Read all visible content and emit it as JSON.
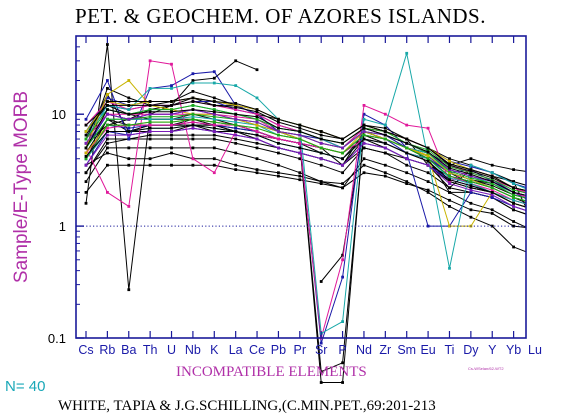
{
  "title": "PET. & GEOCHEM. OF AZORES ISLANDS.",
  "ylabel": "Sample/E-Type MORB",
  "xlabel": "INCOMPATIBLE ELEMENTS",
  "n_label": "N= 40",
  "legend_text": "Cs-WSelan/62-WT2",
  "reference": "WHITE, TAPIA & J.G.SCHILLING,(C.MIN.PET.,69:201-213",
  "colors": {
    "axis": "#1a1a9a",
    "label": "#b030a8",
    "n_label": "#1aa8b8",
    "reference_line": "#1a1a9a"
  },
  "chart_data": {
    "type": "line",
    "yscale": "log",
    "ylim": [
      0.1,
      50
    ],
    "yticks": [
      "0.1",
      "1",
      "10"
    ],
    "categories": [
      "Cs",
      "Rb",
      "Ba",
      "Th",
      "U",
      "Nb",
      "K",
      "La",
      "Ce",
      "Pb",
      "Pr",
      "Sr",
      "P",
      "Nd",
      "Zr",
      "Sm",
      "Eu",
      "Ti",
      "Dy",
      "Y",
      "Yb",
      "Lu"
    ],
    "reference_line": 1,
    "series": [
      {
        "color": "#000000",
        "values": [
          1.6,
          42,
          0.27,
          10,
          12,
          20,
          21,
          30,
          25,
          null,
          null,
          0.32,
          0.55,
          8,
          7,
          6,
          3.5,
          2.2,
          3.2,
          2.8,
          2.5,
          1.0
        ]
      },
      {
        "color": "#000000",
        "values": [
          5,
          17,
          14,
          12,
          13,
          16,
          14,
          12,
          10,
          7,
          6,
          5,
          3.5,
          7,
          6,
          5,
          4.5,
          3.5,
          4,
          3.5,
          3.2,
          3.0
        ]
      },
      {
        "color": "#000000",
        "values": [
          4,
          9,
          8,
          8,
          8,
          8,
          8,
          7,
          6,
          5,
          4.5,
          4,
          3.5,
          6,
          5,
          4,
          3.5,
          2.8,
          2.5,
          2.2,
          1.8,
          1.5
        ]
      },
      {
        "color": "#000000",
        "values": [
          3,
          6,
          6,
          6,
          6,
          6,
          6,
          5.5,
          5,
          4.5,
          4,
          3.5,
          3,
          5,
          4.5,
          3.5,
          3,
          2.2,
          2,
          1.8,
          1.4,
          1.2
        ]
      },
      {
        "color": "#000000",
        "values": [
          2.5,
          5,
          5,
          5,
          5,
          5,
          5,
          4.5,
          4,
          3.5,
          3,
          2.5,
          2.2,
          4,
          3.5,
          3,
          2.5,
          2,
          1.6,
          1.4,
          1.1,
          0.9
        ]
      },
      {
        "color": "#000000",
        "values": [
          3.5,
          4.5,
          4,
          4,
          4.5,
          4,
          4,
          3.5,
          3.2,
          3,
          2.8,
          2.5,
          2.4,
          3.5,
          3,
          2.5,
          2,
          1.5,
          1.2,
          1.0,
          0.65,
          0.55
        ]
      },
      {
        "color": "#000000",
        "values": [
          7,
          12,
          10,
          9,
          9,
          10,
          9,
          8,
          7,
          6,
          5.5,
          5,
          4.5,
          6.5,
          5.5,
          4.5,
          4,
          2,
          2,
          1.8,
          1.4,
          1.2
        ]
      },
      {
        "color": "#000000",
        "values": [
          5.5,
          8,
          9,
          9,
          9,
          9,
          8.5,
          8,
          7,
          6,
          5.5,
          4.5,
          4,
          6.5,
          6,
          5,
          4,
          3,
          2.4,
          2,
          1.6,
          1.4
        ]
      },
      {
        "color": "#000000",
        "values": [
          2,
          3.5,
          3.5,
          3.5,
          3.5,
          3.5,
          3.5,
          3.2,
          3,
          2.8,
          2.6,
          2.4,
          2.2,
          3,
          2.8,
          2.4,
          2.1,
          1.7,
          1.4,
          1.3,
          1.0,
          0.95
        ]
      },
      {
        "color": "#000000",
        "values": [
          6,
          10,
          9,
          11,
          12,
          14,
          12,
          12,
          10,
          9,
          8,
          7,
          6,
          8,
          7,
          6,
          5,
          4,
          3.5,
          3,
          2.5,
          2.2
        ]
      },
      {
        "color": "#000000",
        "values": [
          4,
          7,
          7,
          8,
          8,
          8,
          8,
          7.5,
          7,
          6,
          5.5,
          5,
          4.5,
          6,
          5.5,
          4.5,
          3.8,
          2.5,
          2.2,
          2,
          1.6,
          1.4
        ]
      },
      {
        "color": "#000000",
        "values": [
          3,
          5.5,
          6,
          6.5,
          6.5,
          6.5,
          6.5,
          6,
          5.5,
          5,
          4.5,
          4,
          3.5,
          5,
          4.5,
          4,
          3.5,
          2.5,
          2.2,
          2,
          1.7,
          1.5
        ]
      },
      {
        "color": "#000000",
        "values": [
          4.5,
          9,
          7,
          7,
          7,
          8,
          7,
          7,
          6.5,
          6,
          5.5,
          0.04,
          0.04,
          7.5,
          6.5,
          5,
          4,
          3,
          2.6,
          2.4,
          2,
          1.8
        ]
      },
      {
        "color": "#000000",
        "values": [
          6,
          15,
          7,
          8,
          8,
          9,
          8,
          7,
          6.5,
          6,
          5.5,
          0.05,
          0.06,
          7,
          6,
          5,
          4,
          3,
          2.6,
          2.3,
          1.9,
          1.7
        ]
      },
      {
        "color": "#1a1aa8",
        "values": [
          9,
          20,
          6,
          17,
          18,
          23,
          24,
          12,
          10,
          7,
          6,
          0.09,
          0.35,
          10,
          8,
          5,
          4,
          3,
          3.2,
          2.5,
          2,
          1.6
        ]
      },
      {
        "color": "#1a1aa8",
        "values": [
          6,
          12,
          11,
          12,
          12,
          13,
          13,
          11,
          10,
          8,
          7,
          6,
          5,
          7.5,
          6.5,
          5,
          4.5,
          3.5,
          3,
          2.6,
          2,
          1.8
        ]
      },
      {
        "color": "#1a1aa8",
        "values": [
          5,
          10,
          9,
          10,
          10,
          11,
          10,
          9,
          8,
          7,
          6.5,
          6,
          5,
          7,
          6,
          5,
          4.2,
          3,
          2.6,
          2.2,
          1.8,
          1.6
        ]
      },
      {
        "color": "#1a1aa8",
        "values": [
          7,
          14,
          12,
          13,
          13,
          14,
          13,
          12,
          11,
          9,
          8,
          7,
          6,
          8,
          7,
          6,
          5,
          3.8,
          3.4,
          3,
          2.4,
          2.1
        ]
      },
      {
        "color": "#1a1aa8",
        "values": [
          3.5,
          7,
          6.5,
          7,
          7,
          7.5,
          7,
          6.5,
          6,
          5,
          4.5,
          4,
          3.5,
          5.5,
          5,
          4,
          3.5,
          2.6,
          2.3,
          2,
          1.6,
          1.4
        ]
      },
      {
        "color": "#1a1aa8",
        "values": [
          4,
          8,
          7.5,
          8,
          8,
          8.5,
          8,
          7.5,
          7,
          6,
          5.5,
          5,
          4.5,
          6.5,
          6,
          4.5,
          1.0,
          1.0,
          2,
          1.8,
          1.5,
          1.3
        ]
      },
      {
        "color": "#e0189a",
        "values": [
          5,
          2,
          1.5,
          30,
          28,
          4,
          3,
          7,
          6.5,
          6,
          5.5,
          0.1,
          0.5,
          12,
          10,
          8,
          7.5,
          2.5,
          3.2,
          2.8,
          2.2,
          1.8
        ]
      },
      {
        "color": "#e0189a",
        "values": [
          8,
          13,
          11,
          12,
          12,
          13,
          12,
          11,
          10,
          8,
          7,
          6,
          5,
          7.5,
          7,
          6,
          5,
          3.5,
          3,
          2.6,
          2.2,
          1.9
        ]
      },
      {
        "color": "#e0189a",
        "values": [
          6,
          10,
          10,
          10,
          10,
          10,
          10,
          9.5,
          9,
          7,
          6.5,
          5.5,
          5,
          7,
          6.5,
          5.5,
          4.5,
          3.2,
          2.8,
          2.4,
          2,
          1.7
        ]
      },
      {
        "color": "#e0189a",
        "values": [
          4.5,
          7.5,
          8,
          8,
          8,
          8.5,
          8,
          8,
          7,
          6,
          5.5,
          5,
          4.5,
          6,
          5.5,
          4.5,
          4,
          2.8,
          2.4,
          2.1,
          1.7,
          1.5
        ]
      },
      {
        "color": "#18a8a8",
        "values": [
          6,
          12,
          11,
          17,
          17,
          19,
          19,
          18,
          14,
          9,
          8,
          0.11,
          0.14,
          9,
          8,
          35,
          4,
          0.42,
          3.5,
          3,
          2.4,
          2
        ]
      },
      {
        "color": "#18a8a8",
        "values": [
          7,
          11,
          10,
          11,
          11,
          12,
          11,
          10,
          9,
          7.5,
          7,
          6,
          5,
          7,
          6.5,
          5.5,
          4.5,
          3.2,
          2.8,
          2.4,
          2,
          1.8
        ]
      },
      {
        "color": "#18a8a8",
        "values": [
          5,
          9,
          9,
          9,
          9,
          9.5,
          9,
          8.5,
          8,
          6.5,
          6,
          5,
          4.5,
          6.5,
          6,
          5,
          4.5,
          3,
          2.6,
          2.2,
          1.8,
          1.6
        ]
      },
      {
        "color": "#18a8a8",
        "values": [
          4,
          7,
          7,
          7.5,
          7.5,
          8,
          7.5,
          7,
          6.5,
          5.5,
          5,
          4.5,
          4,
          6,
          5.5,
          4.5,
          4,
          2.7,
          2.4,
          2,
          1.7,
          1.5
        ]
      },
      {
        "color": "#c8b400",
        "values": [
          5,
          15,
          20,
          12,
          11,
          10,
          10,
          9,
          8,
          7,
          6,
          5,
          4.5,
          7,
          6,
          5,
          4.2,
          1.0,
          1.0,
          2,
          1.6,
          1.4
        ]
      },
      {
        "color": "#c8b400",
        "values": [
          7,
          13,
          12,
          13,
          13,
          14,
          13,
          12,
          11,
          9,
          8,
          7,
          6,
          8,
          7,
          6,
          5,
          3.8,
          3.2,
          2.8,
          2.2,
          2
        ]
      },
      {
        "color": "#c8b400",
        "values": [
          4.5,
          8,
          8,
          8.5,
          8.5,
          9,
          8.5,
          8,
          7.5,
          6.5,
          6,
          5,
          4.5,
          6.5,
          6,
          5,
          4.3,
          3,
          2.6,
          2.2,
          1.8,
          1.6
        ]
      },
      {
        "color": "#1aa81a",
        "values": [
          6,
          11,
          10,
          11,
          11,
          12,
          11,
          10,
          9,
          7.5,
          7,
          6,
          5.5,
          7.5,
          7,
          5.5,
          4.8,
          3.4,
          3,
          2.6,
          2.1,
          1.9
        ]
      },
      {
        "color": "#1aa81a",
        "values": [
          4,
          8,
          8,
          8.5,
          8.5,
          9,
          8.5,
          8,
          7.5,
          6.5,
          6,
          5,
          4.5,
          6.5,
          6,
          5,
          4,
          2.8,
          2.5,
          2.2,
          1.8,
          1.6
        ]
      },
      {
        "color": "#1aa81a",
        "values": [
          5,
          9,
          9,
          9.5,
          9.5,
          10,
          9.5,
          9,
          8.5,
          7,
          6.5,
          5.5,
          5,
          7,
          6.5,
          5.5,
          4.5,
          3.1,
          2.7,
          2.4,
          1.9,
          1.7
        ]
      },
      {
        "color": "#7a1ab8",
        "values": [
          5.5,
          10,
          9,
          10,
          10,
          11,
          10,
          9,
          8.5,
          7,
          6.5,
          5.5,
          5,
          7,
          6.5,
          5.5,
          4.6,
          3.2,
          2.8,
          2.5,
          2,
          1.8
        ]
      },
      {
        "color": "#7a1ab8",
        "values": [
          3.5,
          6.5,
          6.5,
          7,
          7,
          7.5,
          7,
          6.5,
          6,
          5,
          4.5,
          4,
          3.5,
          5.5,
          5,
          4,
          3.5,
          2.4,
          2.1,
          1.9,
          1.5,
          1.3
        ]
      },
      {
        "color": "#000000",
        "values": [
          5,
          11,
          10,
          10.5,
          10.5,
          11,
          10.5,
          10,
          9.5,
          7.5,
          7,
          6,
          5.5,
          7.5,
          6.5,
          5.5,
          4.6,
          3.3,
          2.9,
          2.5,
          2,
          1.8
        ]
      },
      {
        "color": "#000000",
        "values": [
          8,
          12,
          12,
          12,
          12,
          13,
          12,
          11.5,
          10.5,
          8.5,
          7.5,
          6.5,
          6,
          8,
          7,
          6,
          5,
          3.6,
          3.2,
          2.8,
          2.2,
          2
        ]
      },
      {
        "color": "#000000",
        "values": [
          4.2,
          7,
          7,
          7.5,
          7.5,
          8,
          7.5,
          7,
          6.5,
          5.5,
          5,
          4.5,
          4,
          6,
          5.5,
          4.5,
          3.8,
          2.6,
          2.3,
          2,
          1.6,
          1.4
        ]
      },
      {
        "color": "#000000",
        "values": [
          6.5,
          13,
          13,
          13,
          13,
          14,
          13,
          12.5,
          11,
          9,
          8,
          7,
          6,
          8,
          7.5,
          6,
          5,
          3.5,
          3.1,
          2.7,
          2.2,
          2
        ]
      }
    ]
  }
}
